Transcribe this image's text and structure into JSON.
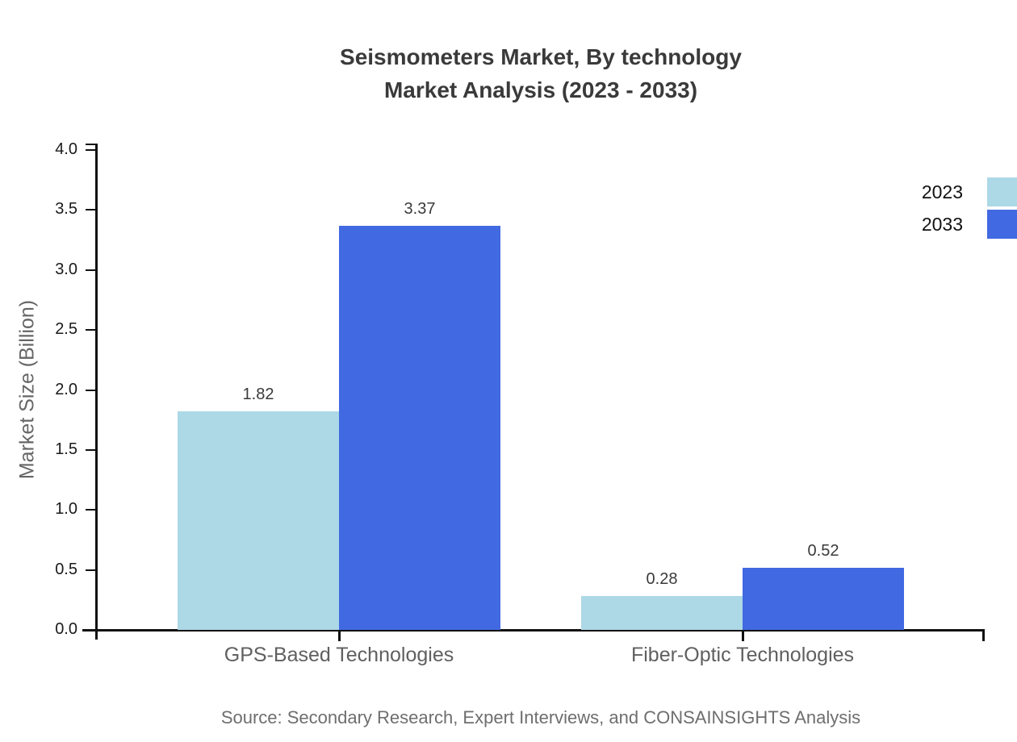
{
  "title": {
    "line1": "Seismometers Market, By technology",
    "line2": "Market Analysis (2023 - 2033)"
  },
  "source_note": "Source: Secondary Research, Expert Interviews, and CONSAINSIGHTS Analysis",
  "chart_data": {
    "type": "bar",
    "title": "Seismometers Market, By technology Market Analysis (2023 - 2033)",
    "categories": [
      "GPS-Based Technologies",
      "Fiber-Optic Technologies"
    ],
    "series": [
      {
        "name": "2023",
        "color": "#ADD8E6",
        "values": [
          1.82,
          0.28
        ]
      },
      {
        "name": "2033",
        "color": "#4169E1",
        "values": [
          3.37,
          0.52
        ]
      }
    ],
    "xlabel": "",
    "ylabel": "Market Size (Billion)",
    "ylim": [
      0.0,
      4.0
    ],
    "yticks": [
      0.0,
      0.5,
      1.0,
      1.5,
      2.0,
      2.5,
      3.0,
      3.5,
      4.0
    ],
    "grid": false,
    "legend_position": "top-right",
    "value_labels": true,
    "colors": {
      "axis": "#111111",
      "title_text": "#3a3a3a",
      "muted_text": "#666666"
    }
  }
}
